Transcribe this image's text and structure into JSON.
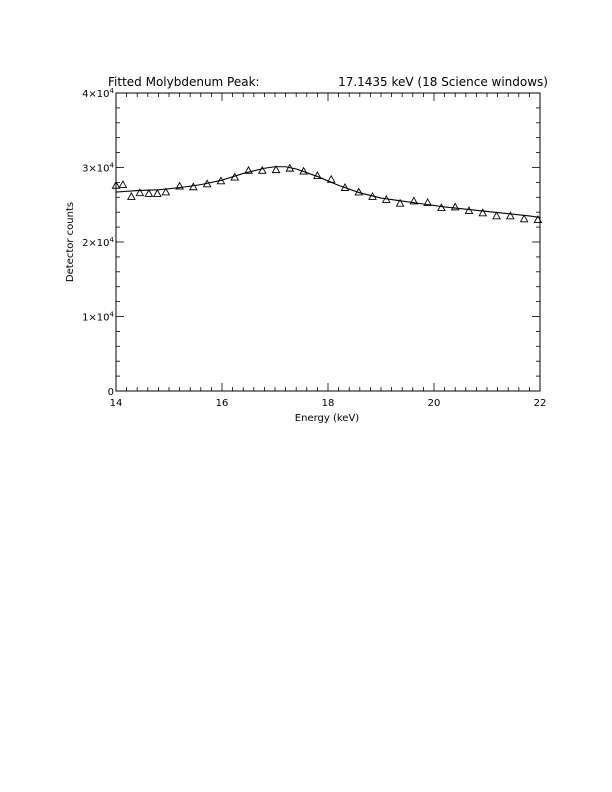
{
  "chart_data": {
    "type": "scatter",
    "title": "Fitted Molybdenum Peak:",
    "subtitle": "17.1435 keV (18 Science windows)",
    "xlabel": "Energy (keV)",
    "ylabel": "Detector counts",
    "xlim": [
      14,
      22
    ],
    "ylim": [
      0,
      40000
    ],
    "x_ticks": [
      14,
      16,
      18,
      20,
      22
    ],
    "x_tick_labels": [
      "14",
      "16",
      "18",
      "20",
      "22"
    ],
    "y_ticks": [
      0,
      10000,
      20000,
      30000,
      40000
    ],
    "y_tick_labels": [
      {
        "base": "0",
        "exp": ""
      },
      {
        "base": "1×10",
        "exp": "4"
      },
      {
        "base": "2×10",
        "exp": "4"
      },
      {
        "base": "3×10",
        "exp": "4"
      },
      {
        "base": "4×10",
        "exp": "4"
      }
    ],
    "grid": false,
    "series": [
      {
        "marker": "triangle-open",
        "x": [
          14.0,
          14.13,
          14.29,
          14.45,
          14.62,
          14.78,
          14.94,
          15.2,
          15.46,
          15.72,
          15.98,
          16.24,
          16.5,
          16.76,
          17.02,
          17.28,
          17.54,
          17.8,
          18.06,
          18.32,
          18.58,
          18.84,
          19.1,
          19.36,
          19.62,
          19.88,
          20.14,
          20.4,
          20.66,
          20.92,
          21.18,
          21.44,
          21.7,
          21.96
        ],
        "y": [
          27600,
          27700,
          26100,
          26600,
          26500,
          26500,
          26700,
          27500,
          27400,
          27800,
          28200,
          28700,
          29600,
          29600,
          29700,
          29900,
          29500,
          28900,
          28400,
          27300,
          26700,
          26100,
          25700,
          25200,
          25500,
          25300,
          24600,
          24700,
          24200,
          23900,
          23500,
          23500,
          23100,
          23000
        ]
      },
      {
        "style": "line",
        "x": [
          14.0,
          14.4,
          14.8,
          15.2,
          15.6,
          16.0,
          16.4,
          16.8,
          17.0,
          17.2,
          17.4,
          17.8,
          18.2,
          18.6,
          19.0,
          19.4,
          19.8,
          20.2,
          20.6,
          21.0,
          21.4,
          21.8,
          22.0
        ],
        "y": [
          26700,
          26900,
          27000,
          27300,
          27700,
          28300,
          29200,
          29900,
          30100,
          30100,
          29800,
          28800,
          27600,
          26600,
          25900,
          25500,
          25100,
          24700,
          24400,
          24100,
          23800,
          23500,
          23300
        ]
      }
    ]
  }
}
